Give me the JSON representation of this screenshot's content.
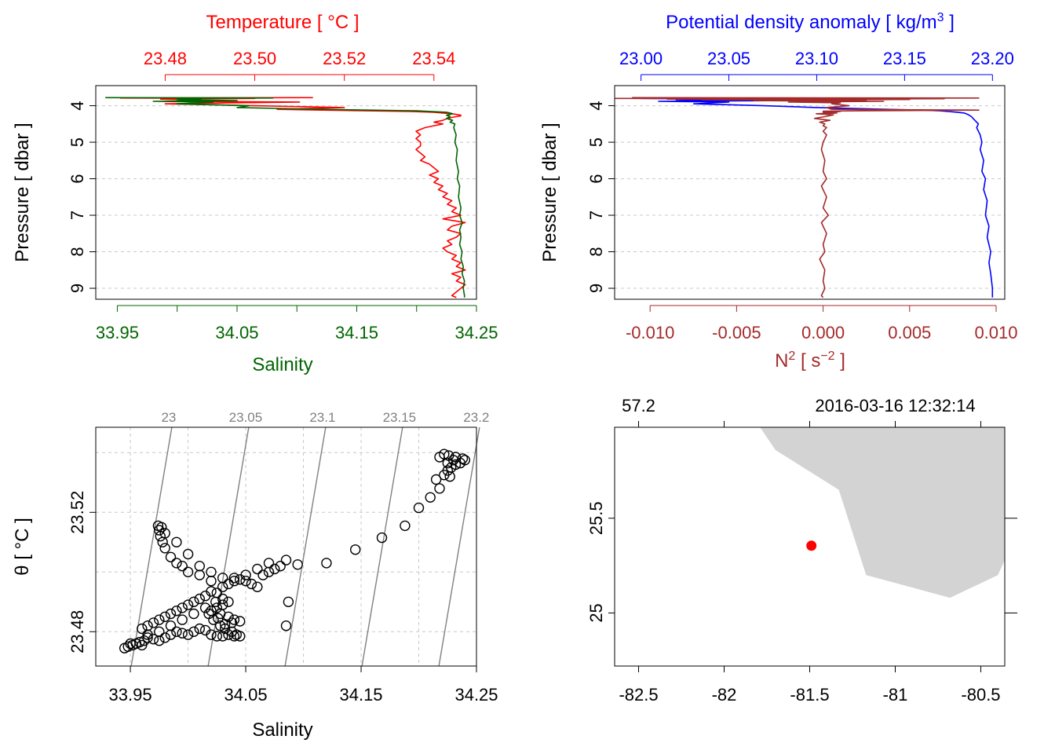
{
  "colors": {
    "temperature": "#ff0000",
    "salinity": "#006400",
    "density": "#0000ff",
    "n2": "#a52a2a",
    "isopycnal": "#808080",
    "land": "#d3d3d3",
    "station": "#ff0000",
    "grid": "#c8c8c8",
    "points": "#000000"
  },
  "chart_data": [
    {
      "id": "profile_ts",
      "type": "line",
      "title": "",
      "ylabel": "Pressure [ dbar ]",
      "yticks": [
        "4",
        "5",
        "6",
        "7",
        "8",
        "9"
      ],
      "ylim": [
        9.3,
        3.45
      ],
      "top_axis": {
        "label": "Temperature [ °C ]",
        "ticks": [
          "23.48",
          "23.50",
          "23.52",
          "23.54"
        ],
        "lim": [
          23.4645,
          23.5495
        ]
      },
      "bottom_axis": {
        "label": "Salinity",
        "ticks": [
          "33.95",
          "34.05",
          "34.15",
          "34.25"
        ],
        "minor_ticks": [
          34.0,
          34.1,
          34.2
        ],
        "lim": [
          33.932,
          34.25
        ]
      },
      "series": [
        {
          "name": "Temperature",
          "axis": "top",
          "p": [
            3.78,
            3.79,
            3.8,
            3.82,
            3.84,
            3.86,
            3.88,
            3.9,
            3.92,
            3.95,
            4.0,
            4.05,
            4.1,
            4.12,
            4.14,
            4.16,
            4.18,
            4.2,
            4.22,
            4.24,
            4.26,
            4.28,
            4.3,
            4.32,
            4.35,
            4.4,
            4.45,
            4.5,
            4.55,
            4.6,
            4.65,
            4.7,
            4.8,
            4.9,
            5.0,
            5.1,
            5.2,
            5.3,
            5.4,
            5.5,
            5.6,
            5.7,
            5.8,
            5.9,
            6.0,
            6.1,
            6.2,
            6.3,
            6.4,
            6.5,
            6.6,
            6.7,
            6.8,
            6.9,
            7.0,
            7.1,
            7.2,
            7.3,
            7.4,
            7.5,
            7.6,
            7.7,
            7.8,
            7.9,
            8.0,
            8.1,
            8.2,
            8.3,
            8.4,
            8.5,
            8.6,
            8.7,
            8.8,
            8.9,
            9.0,
            9.1,
            9.2,
            9.25
          ],
          "values": [
            23.513,
            23.47,
            23.5,
            23.479,
            23.485,
            23.49,
            23.48,
            23.51,
            23.495,
            23.48,
            23.5,
            23.52,
            23.505,
            23.515,
            23.525,
            23.535,
            23.54,
            23.542,
            23.544,
            23.545,
            23.546,
            23.546,
            23.545,
            23.544,
            23.543,
            23.542,
            23.54,
            23.542,
            23.54,
            23.538,
            23.537,
            23.536,
            23.537,
            23.536,
            23.537,
            23.537,
            23.536,
            23.537,
            23.538,
            23.537,
            23.539,
            23.54,
            23.541,
            23.539,
            23.541,
            23.54,
            23.542,
            23.541,
            23.543,
            23.542,
            23.544,
            23.543,
            23.545,
            23.544,
            23.546,
            23.542,
            23.547,
            23.544,
            23.543,
            23.546,
            23.545,
            23.543,
            23.544,
            23.542,
            23.543,
            23.545,
            23.544,
            23.546,
            23.545,
            23.547,
            23.544,
            23.546,
            23.545,
            23.547,
            23.546,
            23.545,
            23.544,
            23.545
          ]
        },
        {
          "name": "Salinity",
          "axis": "bottom",
          "p": [
            3.78,
            3.79,
            3.8,
            3.82,
            3.84,
            3.86,
            3.88,
            3.9,
            3.95,
            4.0,
            4.05,
            4.1,
            4.14,
            4.18,
            4.2,
            4.22,
            4.24,
            4.26,
            4.3,
            4.35,
            4.4,
            4.45,
            4.5,
            4.6,
            4.7,
            4.8,
            5.0,
            5.2,
            5.5,
            5.8,
            6.0,
            6.2,
            6.5,
            6.8,
            7.0,
            7.2,
            7.4,
            7.6,
            7.8,
            8.0,
            8.2,
            8.4,
            8.6,
            8.8,
            9.0,
            9.2,
            9.25
          ],
          "values": [
            33.94,
            34.08,
            34.0,
            34.02,
            34.0,
            34.05,
            33.98,
            34.03,
            34.0,
            34.06,
            34.05,
            34.12,
            34.2,
            34.225,
            34.228,
            34.23,
            34.228,
            34.225,
            34.228,
            34.225,
            34.23,
            34.228,
            34.232,
            34.231,
            34.232,
            34.233,
            34.232,
            34.234,
            34.233,
            34.235,
            34.234,
            34.236,
            34.235,
            34.237,
            34.236,
            34.238,
            34.236,
            34.237,
            34.236,
            34.238,
            34.237,
            34.239,
            34.238,
            34.24,
            34.239,
            34.24,
            34.24
          ]
        }
      ]
    },
    {
      "id": "profile_density",
      "type": "line",
      "title": "",
      "ylabel": "Pressure [ dbar ]",
      "yticks": [
        "4",
        "5",
        "6",
        "7",
        "8",
        "9"
      ],
      "ylim": [
        9.3,
        3.45
      ],
      "top_axis": {
        "label": "Potential density anomaly [ kg/m³ ]",
        "ticks": [
          "23.00",
          "23.05",
          "23.10",
          "23.15",
          "23.20"
        ],
        "lim": [
          22.985,
          23.207
        ]
      },
      "bottom_axis": {
        "label": "N² [ s⁻² ]",
        "ticks": [
          "-0.010",
          "-0.005",
          "0.000",
          "0.005",
          "0.010"
        ],
        "lim": [
          -0.01205,
          0.0105
        ]
      },
      "series": [
        {
          "name": "Potential density anomaly",
          "axis": "top",
          "p": [
            3.78,
            3.79,
            3.8,
            3.82,
            3.84,
            3.86,
            3.88,
            3.9,
            3.95,
            4.0,
            4.05,
            4.1,
            4.12,
            4.14,
            4.16,
            4.18,
            4.2,
            4.24,
            4.3,
            4.4,
            4.5,
            4.6,
            4.8,
            5.0,
            5.2,
            5.5,
            5.8,
            6.0,
            6.3,
            6.6,
            7.0,
            7.3,
            7.6,
            8.0,
            8.3,
            8.6,
            9.0,
            9.25
          ],
          "values": [
            22.995,
            23.05,
            23.0,
            23.06,
            23.02,
            23.08,
            23.01,
            23.05,
            23.03,
            23.07,
            23.1,
            23.14,
            23.16,
            23.17,
            23.175,
            23.18,
            23.184,
            23.186,
            23.188,
            23.19,
            23.192,
            23.191,
            23.193,
            23.194,
            23.193,
            23.195,
            23.194,
            23.196,
            23.195,
            23.197,
            23.196,
            23.198,
            23.197,
            23.199,
            23.198,
            23.199,
            23.2,
            23.2
          ]
        },
        {
          "name": "N2",
          "axis": "bottom",
          "p": [
            3.78,
            3.79,
            3.8,
            3.81,
            3.82,
            3.83,
            3.84,
            3.85,
            3.86,
            3.88,
            3.9,
            3.92,
            3.95,
            4.0,
            4.05,
            4.1,
            4.12,
            4.14,
            4.15,
            4.16,
            4.18,
            4.2,
            4.22,
            4.25,
            4.3,
            4.35,
            4.4,
            4.45,
            4.5,
            4.55,
            4.6,
            4.7,
            4.8,
            5.0,
            5.2,
            5.5,
            5.8,
            6.0,
            6.2,
            6.5,
            6.8,
            7.0,
            7.2,
            7.5,
            7.8,
            8.0,
            8.2,
            8.5,
            8.8,
            9.0,
            9.2,
            9.25
          ],
          "values": [
            -0.011,
            0.009,
            -0.012,
            0.007,
            -0.009,
            0.005,
            -0.007,
            0.0025,
            -0.004,
            0.0035,
            -0.002,
            0.001,
            0.0005,
            0.0015,
            0.0002,
            0.0005,
            0.009,
            0.0022,
            0.0,
            0.001,
            0.0,
            0.0008,
            -0.0004,
            0.0006,
            0.0001,
            -0.0005,
            0.0004,
            -0.0002,
            0.0001,
            0.0,
            0.0002,
            0.0,
            0.0002,
            0.0,
            -0.0001,
            0.0001,
            0.0,
            0.0002,
            -0.0001,
            0.0002,
            0.0,
            0.0003,
            -0.0001,
            0.0002,
            0.0,
            0.0001,
            -0.0002,
            0.0001,
            0.0,
            0.0001,
            -0.0001,
            0.0
          ]
        }
      ]
    },
    {
      "id": "ts_diagram",
      "type": "scatter",
      "title": "",
      "xlabel": "Salinity",
      "ylabel": "θ [ °C ]",
      "xticks": [
        "33.95",
        "34.05",
        "34.15",
        "34.25"
      ],
      "yticks": [
        "23.48",
        "23.52"
      ],
      "xlim": [
        33.92,
        34.25
      ],
      "ylim": [
        23.4685,
        23.5485
      ],
      "isopycnal_labels": [
        "23",
        "23.05",
        "23.1",
        "23.15",
        "23.2"
      ],
      "isopycnal_sigma": [
        23.0,
        23.05,
        23.1,
        23.15,
        23.2
      ],
      "points": [
        [
          33.945,
          23.4745
        ],
        [
          33.948,
          23.475
        ],
        [
          33.952,
          23.4755
        ],
        [
          33.955,
          23.476
        ],
        [
          33.958,
          23.4765
        ],
        [
          33.962,
          23.477
        ],
        [
          33.95,
          23.476
        ],
        [
          33.96,
          23.4755
        ],
        [
          33.965,
          23.478
        ],
        [
          33.97,
          23.4775
        ],
        [
          33.975,
          23.477
        ],
        [
          33.98,
          23.478
        ],
        [
          33.985,
          23.479
        ],
        [
          33.99,
          23.48
        ],
        [
          33.995,
          23.4795
        ],
        [
          34.0,
          23.479
        ],
        [
          34.005,
          23.48
        ],
        [
          34.01,
          23.481
        ],
        [
          34.015,
          23.4805
        ],
        [
          34.02,
          23.479
        ],
        [
          34.025,
          23.4785
        ],
        [
          34.03,
          23.4785
        ],
        [
          34.035,
          23.479
        ],
        [
          34.04,
          23.4785
        ],
        [
          34.045,
          23.4785
        ],
        [
          34.042,
          23.479
        ],
        [
          34.038,
          23.48
        ],
        [
          34.032,
          23.481
        ],
        [
          34.028,
          23.482
        ],
        [
          34.022,
          23.484
        ],
        [
          34.018,
          23.486
        ],
        [
          34.02,
          23.487
        ],
        [
          34.025,
          23.488
        ],
        [
          34.03,
          23.489
        ],
        [
          34.035,
          23.49
        ],
        [
          34.03,
          23.491
        ],
        [
          34.025,
          23.493
        ],
        [
          34.02,
          23.4935
        ],
        [
          34.015,
          23.492
        ],
        [
          34.01,
          23.491
        ],
        [
          34.005,
          23.49
        ],
        [
          34.0,
          23.489
        ],
        [
          33.995,
          23.488
        ],
        [
          33.99,
          23.487
        ],
        [
          33.985,
          23.486
        ],
        [
          33.98,
          23.485
        ],
        [
          33.975,
          23.484
        ],
        [
          33.97,
          23.483
        ],
        [
          33.965,
          23.482
        ],
        [
          33.96,
          23.481
        ],
        [
          33.965,
          23.479
        ],
        [
          33.975,
          23.48
        ],
        [
          33.985,
          23.482
        ],
        [
          33.995,
          23.484
        ],
        [
          34.005,
          23.486
        ],
        [
          34.015,
          23.488
        ],
        [
          34.028,
          23.486
        ],
        [
          34.035,
          23.485
        ],
        [
          34.04,
          23.484
        ],
        [
          34.045,
          23.4835
        ],
        [
          34.038,
          23.483
        ],
        [
          34.032,
          23.4825
        ],
        [
          34.026,
          23.4845
        ],
        [
          34.024,
          23.49
        ],
        [
          34.03,
          23.495
        ],
        [
          34.035,
          23.496
        ],
        [
          34.04,
          23.497
        ],
        [
          34.045,
          23.4975
        ],
        [
          34.05,
          23.497
        ],
        [
          34.055,
          23.496
        ],
        [
          34.06,
          23.495
        ],
        [
          34.065,
          23.499
        ],
        [
          34.07,
          23.5
        ],
        [
          34.075,
          23.501
        ],
        [
          34.08,
          23.502
        ],
        [
          34.085,
          23.504
        ],
        [
          34.07,
          23.503
        ],
        [
          34.06,
          23.501
        ],
        [
          34.05,
          23.499
        ],
        [
          34.04,
          23.498
        ],
        [
          34.02,
          23.497
        ],
        [
          34.01,
          23.499
        ],
        [
          34.0,
          23.5
        ],
        [
          33.995,
          23.502
        ],
        [
          33.99,
          23.503
        ],
        [
          33.985,
          23.505
        ],
        [
          33.98,
          23.508
        ],
        [
          33.978,
          23.51
        ],
        [
          33.976,
          23.512
        ],
        [
          33.975,
          23.514
        ],
        [
          33.974,
          23.5155
        ],
        [
          33.977,
          23.515
        ],
        [
          33.98,
          23.513
        ],
        [
          33.99,
          23.51
        ],
        [
          34.0,
          23.506
        ],
        [
          34.01,
          23.502
        ],
        [
          34.02,
          23.5
        ],
        [
          34.03,
          23.498
        ],
        [
          34.085,
          23.482
        ],
        [
          34.087,
          23.49
        ],
        [
          34.095,
          23.5025
        ],
        [
          34.12,
          23.503
        ],
        [
          34.145,
          23.5075
        ],
        [
          34.168,
          23.5115
        ],
        [
          34.188,
          23.5155
        ],
        [
          34.2,
          23.5215
        ],
        [
          34.21,
          23.525
        ],
        [
          34.218,
          23.528
        ],
        [
          34.215,
          23.531
        ],
        [
          34.222,
          23.5325
        ],
        [
          34.225,
          23.534
        ],
        [
          34.228,
          23.535
        ],
        [
          34.232,
          23.536
        ],
        [
          34.236,
          23.5365
        ],
        [
          34.24,
          23.5375
        ],
        [
          34.238,
          23.538
        ],
        [
          34.232,
          23.5385
        ],
        [
          34.226,
          23.539
        ],
        [
          34.222,
          23.5395
        ],
        [
          34.218,
          23.5385
        ],
        [
          34.225,
          23.5365
        ],
        [
          34.23,
          23.5375
        ],
        [
          34.227,
          23.532
        ]
      ]
    },
    {
      "id": "station_map",
      "type": "scatter",
      "title": "",
      "xlabel": "",
      "ylabel": "",
      "xticks": [
        "-82.5",
        "-82",
        "-81.5",
        "-81",
        "-80.5"
      ],
      "yticks": [
        "25",
        "25.5"
      ],
      "xlim": [
        -82.64,
        -80.36
      ],
      "ylim": [
        24.72,
        25.98
      ],
      "top_labels": [
        "57.2",
        "2016-03-16 12:32:14"
      ],
      "station": {
        "lon": -81.49,
        "lat": 25.355
      },
      "land_polygon": [
        [
          -81.79,
          25.98
        ],
        [
          -81.7,
          25.86
        ],
        [
          -81.33,
          25.65
        ],
        [
          -81.17,
          25.2
        ],
        [
          -80.68,
          25.08
        ],
        [
          -80.4,
          25.2
        ],
        [
          -80.36,
          25.28
        ],
        [
          -80.36,
          25.98
        ]
      ]
    }
  ]
}
